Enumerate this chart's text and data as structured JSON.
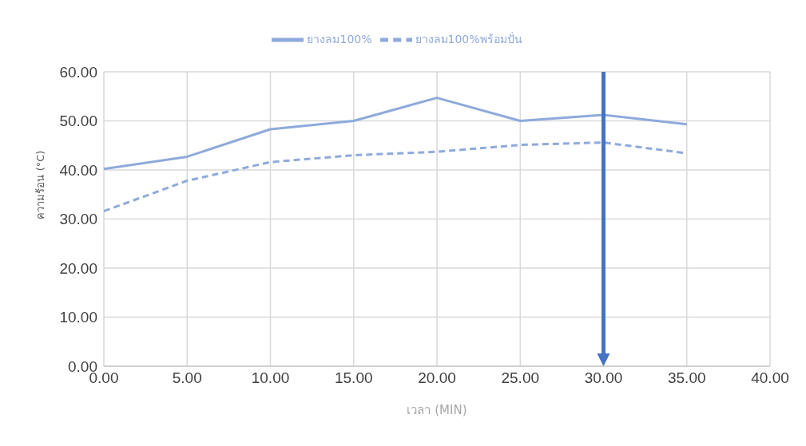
{
  "chart_data": {
    "type": "line",
    "xlabel": "เวลา (MIN)",
    "ylabel": "ความร้อน (°C)",
    "x": [
      0,
      5,
      10,
      15,
      20,
      25,
      30,
      35
    ],
    "series": [
      {
        "name": "ยางลม100%",
        "color": "#8eaadb",
        "line_style": "solid",
        "values": [
          40.2,
          42.7,
          48.3,
          50.0,
          54.7,
          50.0,
          51.2,
          49.3
        ]
      },
      {
        "name": "ยางลม100%พร้อมปั่น",
        "color": "#8eaadb",
        "line_style": "dashed",
        "values": [
          31.6,
          37.8,
          41.6,
          43.0,
          43.7,
          45.1,
          45.6,
          43.4
        ]
      }
    ],
    "xlim": [
      0,
      40
    ],
    "xticks": [
      {
        "value": 0,
        "label": "0.00"
      },
      {
        "value": 5,
        "label": "5.00"
      },
      {
        "value": 10,
        "label": "10.00"
      },
      {
        "value": 15,
        "label": "15.00"
      },
      {
        "value": 20,
        "label": "20.00"
      },
      {
        "value": 25,
        "label": "25.00"
      },
      {
        "value": 30,
        "label": "30.00"
      },
      {
        "value": 35,
        "label": "35.00"
      },
      {
        "value": 40,
        "label": "40.00"
      }
    ],
    "ylim": [
      0,
      60
    ],
    "yticks": [
      {
        "value": 0,
        "label": "0.00"
      },
      {
        "value": 10,
        "label": "10.00"
      },
      {
        "value": 20,
        "label": "20.00"
      },
      {
        "value": 30,
        "label": "30.00"
      },
      {
        "value": 40,
        "label": "40.00"
      },
      {
        "value": 50,
        "label": "50.00"
      },
      {
        "value": 60,
        "label": "60.00"
      }
    ],
    "grid": true,
    "legend": "top",
    "marker": "none",
    "ref_lines": [
      {
        "axis": "x",
        "value": 30,
        "color": "#4472c4"
      }
    ]
  }
}
